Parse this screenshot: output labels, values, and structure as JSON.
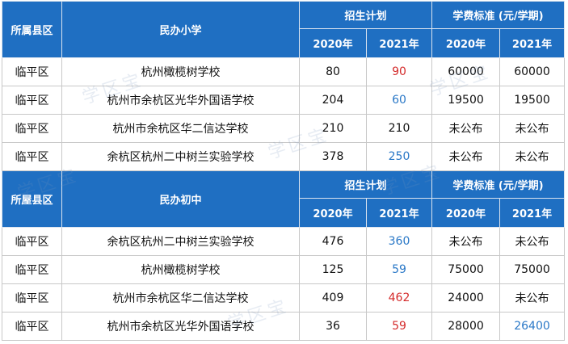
{
  "colors": {
    "header_bg": "#1f6fc2",
    "red": "#d42b2b",
    "blue": "#2a78c7"
  },
  "sections": [
    {
      "header": {
        "county": "所属县区",
        "category": "民办小学",
        "enroll_plan": "招生计划",
        "tuition": "学费标准 (元/学期)",
        "years": [
          "2020年",
          "2021年",
          "2020年",
          "2021年"
        ]
      },
      "rows": [
        {
          "county": "临平区",
          "school": "杭州橄榄树学校",
          "p2020": "80",
          "p2021": "90",
          "p2021_color": "red",
          "t2020": "60000",
          "t2021": "60000",
          "t2021_color": ""
        },
        {
          "county": "临平区",
          "school": "杭州市余杭区光华外国语学校",
          "p2020": "204",
          "p2021": "60",
          "p2021_color": "blue",
          "t2020": "19500",
          "t2021": "19500",
          "t2021_color": ""
        },
        {
          "county": "临平区",
          "school": "杭州市余杭区华二信达学校",
          "p2020": "210",
          "p2021": "210",
          "p2021_color": "",
          "t2020": "未公布",
          "t2021": "未公布",
          "t2021_color": ""
        },
        {
          "county": "临平区",
          "school": "余杭区杭州二中树兰实验学校",
          "p2020": "378",
          "p2021": "250",
          "p2021_color": "blue",
          "t2020": "未公布",
          "t2021": "未公布",
          "t2021_color": ""
        }
      ]
    },
    {
      "header": {
        "county": "所屋县区",
        "category": "民办初中",
        "enroll_plan": "招生计划",
        "tuition": "学费标准 (元/学期)",
        "years": [
          "2020年",
          "2021年",
          "2020年",
          "2021年"
        ]
      },
      "rows": [
        {
          "county": "临平区",
          "school": "余杭区杭州二中树兰实验学校",
          "p2020": "476",
          "p2021": "360",
          "p2021_color": "blue",
          "t2020": "未公布",
          "t2021": "未公布",
          "t2021_color": ""
        },
        {
          "county": "临平区",
          "school": "杭州橄榄树学校",
          "p2020": "125",
          "p2021": "59",
          "p2021_color": "blue",
          "t2020": "75000",
          "t2021": "75000",
          "t2021_color": ""
        },
        {
          "county": "临平区",
          "school": "杭州市余杭区华二信达学校",
          "p2020": "409",
          "p2021": "462",
          "p2021_color": "red",
          "t2020": "24000",
          "t2021": "未公布",
          "t2021_color": ""
        },
        {
          "county": "临平区",
          "school": "杭州市余杭区光华外国语学校",
          "p2020": "36",
          "p2021": "59",
          "p2021_color": "red",
          "t2020": "28000",
          "t2021": "26400",
          "t2021_color": "blue"
        }
      ]
    }
  ],
  "watermark": "学区宝"
}
